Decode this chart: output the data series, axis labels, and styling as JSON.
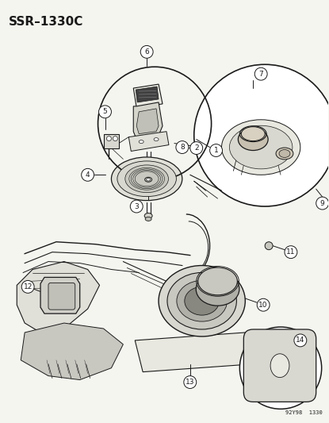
{
  "title": "SSR–1330C",
  "background_color": "#f5f5f0",
  "fig_width": 4.15,
  "fig_height": 5.33,
  "dpi": 100,
  "bottom_right_text": "92Y98  1330",
  "line_color": "#1a1a1a",
  "label_fontsize": 7.5
}
